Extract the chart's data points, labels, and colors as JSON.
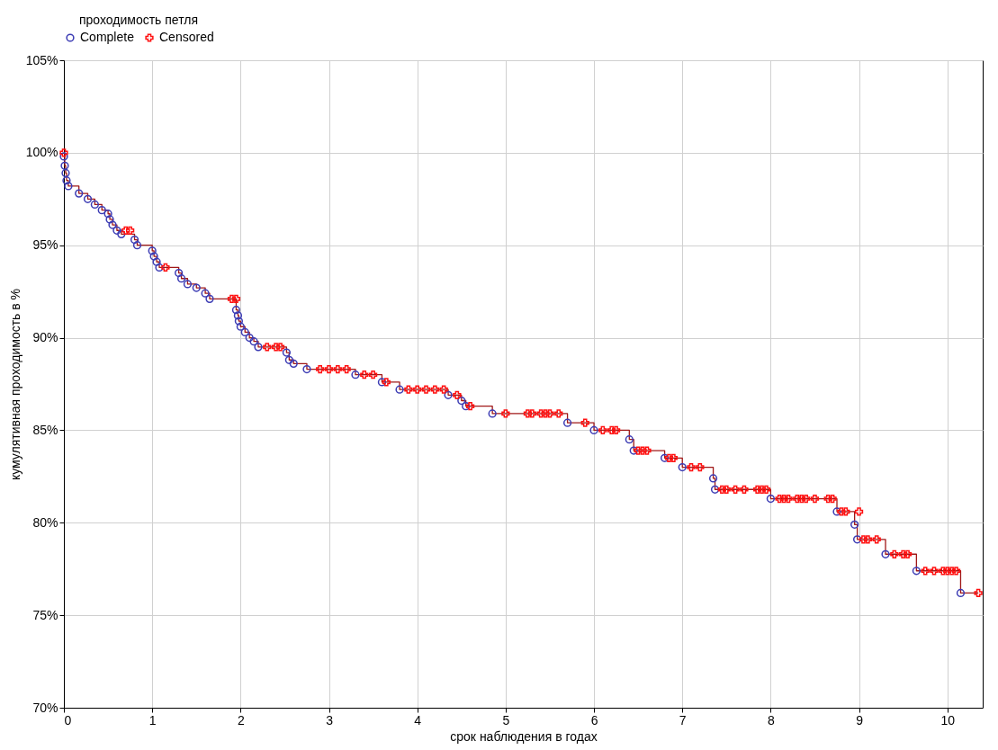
{
  "chart_data": {
    "type": "step",
    "xlabel": "срок наблюдения в годах",
    "ylabel": "кумулятивная проходимость в %",
    "legend_title": "проходимость петля",
    "legend": "top",
    "grid": true,
    "xlim": [
      0,
      10.4
    ],
    "xticks": [
      0,
      1,
      2,
      3,
      4,
      5,
      6,
      7,
      8,
      9,
      10
    ],
    "ylim": [
      70,
      105
    ],
    "yticks": [
      {
        "value": 70,
        "label": "70%"
      },
      {
        "value": 75,
        "label": "75%"
      },
      {
        "value": 80,
        "label": "80%"
      },
      {
        "value": 85,
        "label": "85%"
      },
      {
        "value": 90,
        "label": "90%"
      },
      {
        "value": 95,
        "label": "95%"
      },
      {
        "value": 100,
        "label": "100%"
      },
      {
        "value": 105,
        "label": "105%"
      }
    ],
    "series": [
      {
        "color": "#a01818",
        "x": [
          0,
          0.01,
          0.02,
          0.03,
          0.05,
          0.17,
          0.27,
          0.35,
          0.43,
          0.5,
          0.52,
          0.55,
          0.6,
          0.65,
          0.8,
          0.83,
          1.0,
          1.02,
          1.05,
          1.08,
          1.3,
          1.33,
          1.4,
          1.5,
          1.6,
          1.65,
          1.95,
          1.97,
          1.98,
          2.0,
          2.05,
          2.1,
          2.15,
          2.2,
          2.52,
          2.55,
          2.6,
          2.75,
          3.3,
          3.6,
          3.8,
          4.35,
          4.5,
          4.55,
          4.85,
          5.7,
          6.0,
          6.4,
          6.45,
          6.8,
          7.0,
          7.35,
          7.37,
          8.0,
          8.75,
          8.95,
          8.98,
          9.3,
          9.65,
          10.15,
          10.35
        ],
        "values": [
          100,
          99.3,
          98.9,
          98.5,
          98.2,
          97.8,
          97.5,
          97.2,
          96.9,
          96.7,
          96.4,
          96.1,
          95.8,
          95.6,
          95.3,
          95.0,
          94.7,
          94.4,
          94.1,
          93.8,
          93.5,
          93.2,
          92.9,
          92.7,
          92.4,
          92.1,
          91.5,
          91.2,
          90.9,
          90.6,
          90.3,
          90.0,
          89.8,
          89.5,
          89.2,
          88.8,
          88.6,
          88.3,
          88.0,
          87.6,
          87.2,
          86.9,
          86.6,
          86.3,
          85.9,
          85.4,
          85.0,
          84.5,
          83.9,
          83.5,
          83.0,
          82.4,
          81.8,
          81.3,
          80.6,
          79.9,
          79.1,
          78.3,
          77.4,
          76.2,
          76.2
        ]
      },
      {
        "type": "scatter",
        "name": "Complete",
        "color": "#3c3cb4",
        "marker": "circle",
        "x": [
          0.0,
          0.01,
          0.02,
          0.03,
          0.05,
          0.17,
          0.27,
          0.35,
          0.43,
          0.5,
          0.52,
          0.55,
          0.6,
          0.65,
          0.8,
          0.83,
          1.0,
          1.02,
          1.05,
          1.08,
          1.3,
          1.33,
          1.4,
          1.5,
          1.6,
          1.65,
          1.95,
          1.97,
          1.98,
          2.0,
          2.05,
          2.1,
          2.15,
          2.2,
          2.52,
          2.55,
          2.6,
          2.75,
          3.3,
          3.6,
          3.8,
          4.35,
          4.5,
          4.55,
          4.85,
          5.7,
          6.0,
          6.4,
          6.45,
          6.8,
          7.0,
          7.35,
          7.37,
          8.0,
          8.75,
          8.95,
          8.98,
          9.3,
          9.65,
          10.15
        ],
        "values": [
          99.8,
          99.3,
          98.9,
          98.5,
          98.2,
          97.8,
          97.5,
          97.2,
          96.9,
          96.7,
          96.4,
          96.1,
          95.8,
          95.6,
          95.3,
          95.0,
          94.7,
          94.4,
          94.1,
          93.8,
          93.5,
          93.2,
          92.9,
          92.7,
          92.4,
          92.1,
          91.5,
          91.2,
          90.9,
          90.6,
          90.3,
          90.0,
          89.8,
          89.5,
          89.2,
          88.8,
          88.6,
          88.3,
          88.0,
          87.6,
          87.2,
          86.9,
          86.6,
          86.3,
          85.9,
          85.4,
          85.0,
          84.5,
          83.9,
          83.5,
          83.0,
          82.4,
          81.8,
          81.3,
          80.6,
          79.9,
          79.1,
          78.3,
          77.4,
          76.2
        ]
      },
      {
        "type": "scatter",
        "name": "Censored",
        "color": "#ff1010",
        "marker": "cross",
        "x": [
          0.0,
          0.7,
          0.75,
          1.15,
          1.9,
          1.95,
          2.3,
          2.4,
          2.45,
          2.9,
          3.0,
          3.1,
          3.2,
          3.4,
          3.5,
          3.65,
          3.9,
          4.0,
          4.1,
          4.2,
          4.3,
          4.45,
          4.6,
          5.0,
          5.25,
          5.3,
          5.4,
          5.45,
          5.5,
          5.6,
          5.9,
          6.1,
          6.2,
          6.25,
          6.5,
          6.55,
          6.6,
          6.85,
          6.9,
          7.1,
          7.2,
          7.45,
          7.5,
          7.6,
          7.7,
          7.85,
          7.9,
          7.95,
          8.1,
          8.15,
          8.2,
          8.3,
          8.35,
          8.4,
          8.5,
          8.65,
          8.7,
          8.8,
          8.85,
          9.0,
          9.05,
          9.1,
          9.2,
          9.4,
          9.5,
          9.55,
          9.75,
          9.85,
          9.95,
          10.0,
          10.05,
          10.1,
          10.35
        ],
        "values": [
          100,
          95.8,
          95.8,
          93.8,
          92.1,
          92.1,
          89.5,
          89.5,
          89.5,
          88.3,
          88.3,
          88.3,
          88.3,
          88.0,
          88.0,
          87.6,
          87.2,
          87.2,
          87.2,
          87.2,
          87.2,
          86.9,
          86.3,
          85.9,
          85.9,
          85.9,
          85.9,
          85.9,
          85.9,
          85.9,
          85.4,
          85.0,
          85.0,
          85.0,
          83.9,
          83.9,
          83.9,
          83.5,
          83.5,
          83.0,
          83.0,
          81.8,
          81.8,
          81.8,
          81.8,
          81.8,
          81.8,
          81.8,
          81.3,
          81.3,
          81.3,
          81.3,
          81.3,
          81.3,
          81.3,
          81.3,
          81.3,
          80.6,
          80.6,
          80.6,
          79.1,
          79.1,
          79.1,
          78.3,
          78.3,
          78.3,
          77.4,
          77.4,
          77.4,
          77.4,
          77.4,
          77.4,
          76.2
        ]
      }
    ]
  }
}
